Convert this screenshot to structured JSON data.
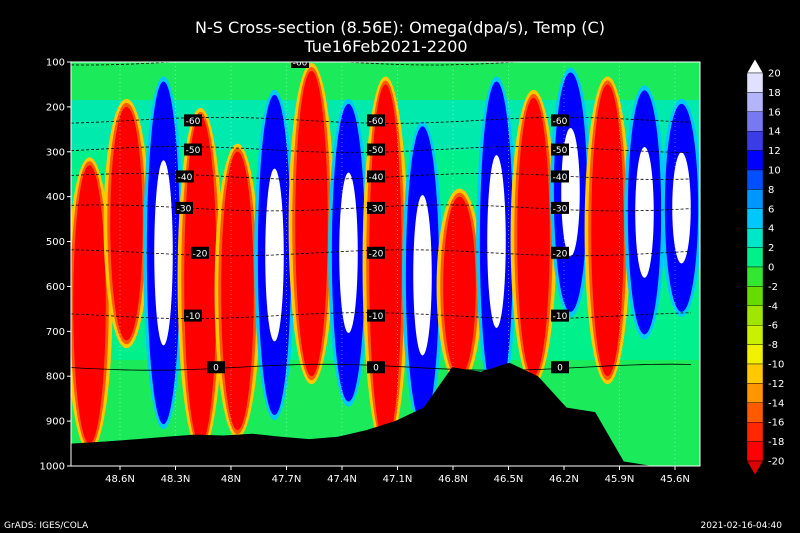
{
  "chart_data": {
    "type": "heatmap",
    "title": "N-S Cross-section (8.56E): Omega(dpa/s), Temp (C)",
    "subtitle": "Tue16Feb2021-2200",
    "x_ticks": [
      "48.6N",
      "48.3N",
      "48N",
      "47.7N",
      "47.4N",
      "47.1N",
      "46.8N",
      "46.5N",
      "46.2N",
      "45.9N",
      "45.6N"
    ],
    "x_range": [
      48.8,
      45.5
    ],
    "y_ticks": [
      "100",
      "200",
      "300",
      "400",
      "500",
      "600",
      "700",
      "800",
      "900",
      "1000"
    ],
    "y_range": [
      100,
      1000
    ],
    "colorbar_ticks": [
      "20",
      "18",
      "16",
      "14",
      "12",
      "10",
      "8",
      "6",
      "4",
      "2",
      "0",
      "-2",
      "-4",
      "-6",
      "-8",
      "-10",
      "-12",
      "-14",
      "-16",
      "-18",
      "-20"
    ],
    "colorbar_colors": [
      "#ffffff",
      "#e1e1ff",
      "#b4b4fa",
      "#7878f0",
      "#3c3ce6",
      "#0000ff",
      "#0050ff",
      "#0096ff",
      "#00c8ff",
      "#00e6c8",
      "#00f08c",
      "#32e632",
      "#64dc00",
      "#a0e600",
      "#c8f000",
      "#f0f000",
      "#ffc800",
      "#ff9600",
      "#ff5a00",
      "#ff2800",
      "#ff0000",
      "#dc0000"
    ],
    "omega_field": {
      "latitudes": [
        48.8,
        48.6,
        48.45,
        48.3,
        48.15,
        48.0,
        47.85,
        47.7,
        47.55,
        47.4,
        47.25,
        47.1,
        46.95,
        46.8,
        46.65,
        46.5,
        46.35,
        46.2,
        46.05,
        45.9,
        45.75,
        45.5
      ],
      "columns": [
        {
          "type": "red",
          "top": 330,
          "bottom": 950
        },
        {
          "type": "red",
          "top": 200,
          "bottom": 720
        },
        {
          "type": "blue",
          "top": 150,
          "bottom": 900
        },
        {
          "type": "red",
          "top": 220,
          "bottom": 950
        },
        {
          "type": "red",
          "top": 300,
          "bottom": 920
        },
        {
          "type": "blue",
          "top": 180,
          "bottom": 880
        },
        {
          "type": "red",
          "top": 120,
          "bottom": 800
        },
        {
          "type": "blue",
          "top": 200,
          "bottom": 850
        },
        {
          "type": "red",
          "top": 150,
          "bottom": 950
        },
        {
          "type": "blue",
          "top": 250,
          "bottom": 900
        },
        {
          "type": "red",
          "top": 400,
          "bottom": 800
        },
        {
          "type": "blue",
          "top": 150,
          "bottom": 850
        },
        {
          "type": "red",
          "top": 180,
          "bottom": 800
        },
        {
          "type": "blue",
          "top": 130,
          "bottom": 650
        },
        {
          "type": "red",
          "top": 150,
          "bottom": 800
        },
        {
          "type": "blue",
          "top": 170,
          "bottom": 700
        },
        {
          "type": "blue",
          "top": 200,
          "bottom": 650
        }
      ]
    },
    "temperature_contours": [
      {
        "label": "-60",
        "p": 100
      },
      {
        "label": "-60",
        "p": 230
      },
      {
        "label": "-50",
        "p": 295
      },
      {
        "label": "-40",
        "p": 355
      },
      {
        "label": "-30",
        "p": 425
      },
      {
        "label": "-20",
        "p": 525
      },
      {
        "label": "-10",
        "p": 665
      },
      {
        "label": "0",
        "p": 780
      }
    ],
    "terrain_pressure": [
      950,
      945,
      940,
      935,
      930,
      932,
      928,
      935,
      940,
      935,
      920,
      900,
      870,
      780,
      790,
      770,
      800,
      870,
      880,
      990,
      1000,
      1000
    ]
  },
  "footer": {
    "left": "GrADS: IGES/COLA",
    "right": "2021-02-16-04:40"
  }
}
